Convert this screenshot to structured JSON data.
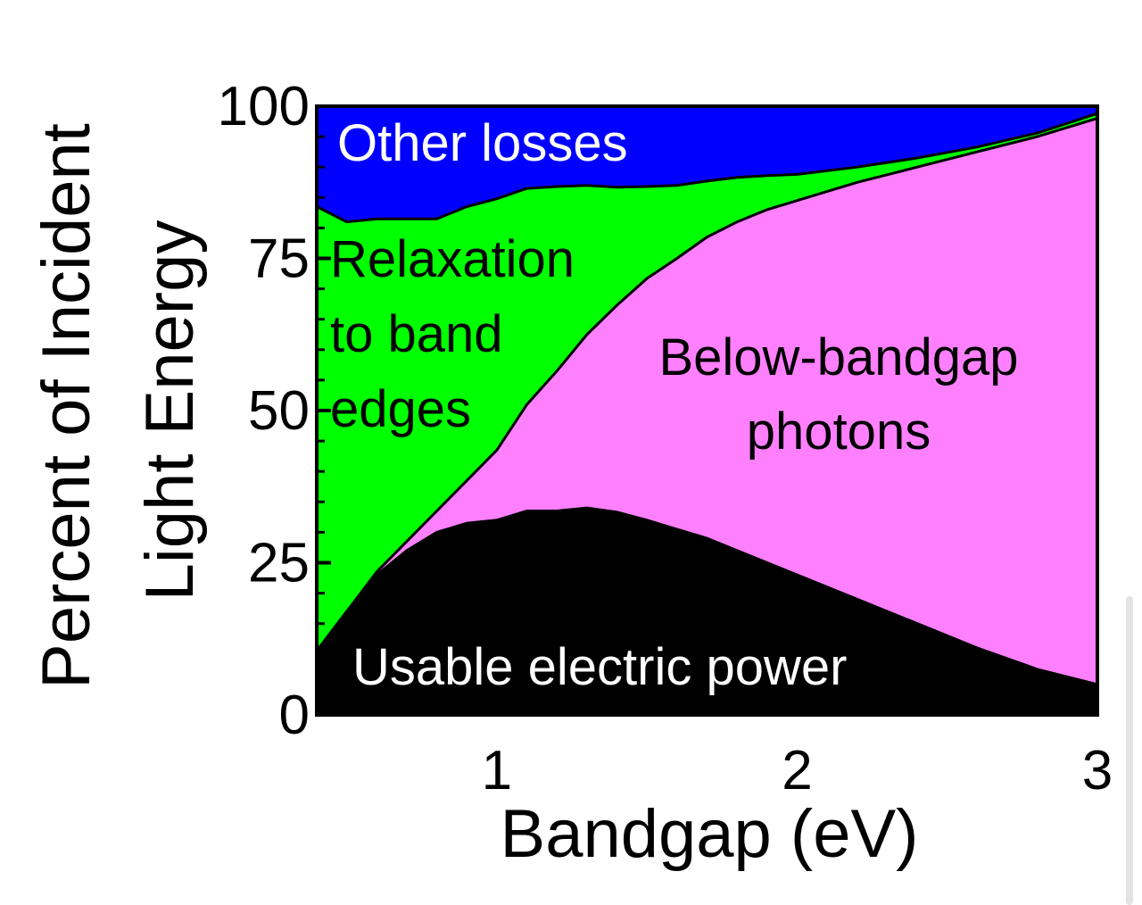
{
  "chart_data": {
    "type": "area",
    "title": "",
    "xlabel": "Bandgap (eV)",
    "ylabel_lines": [
      "Percent of Incident",
      "Light Energy"
    ],
    "xlim": [
      0.4,
      3.0
    ],
    "ylim": [
      0,
      100
    ],
    "x_ticks": [
      1,
      2,
      3
    ],
    "x_tick_labels": [
      "1",
      "2",
      "3"
    ],
    "y_ticks": [
      0,
      25,
      50,
      75,
      100
    ],
    "y_tick_labels": [
      "0",
      "25",
      "50",
      "75",
      "100"
    ],
    "stacked": true,
    "x": [
      0.4,
      0.5,
      0.6,
      0.7,
      0.8,
      0.9,
      1.0,
      1.1,
      1.2,
      1.3,
      1.4,
      1.5,
      1.6,
      1.7,
      1.8,
      1.9,
      2.0,
      2.2,
      2.4,
      2.6,
      2.8,
      3.0
    ],
    "series": [
      {
        "name": "Usable electric power",
        "color": "#000000",
        "values": [
          10.5,
          17,
          23,
          27,
          30,
          31.5,
          32,
          33.5,
          33.5,
          34,
          33.3,
          32,
          30.5,
          29,
          27,
          25,
          23,
          19,
          15,
          11,
          7.5,
          5
        ]
      },
      {
        "name": "Below-bandgap photons",
        "color": "#ff80ff",
        "values": [
          0,
          0,
          0.5,
          1.5,
          3.5,
          7,
          11.5,
          17.5,
          23,
          28.5,
          34,
          39.7,
          44.5,
          49.5,
          54,
          58,
          61.5,
          68.5,
          75,
          81.5,
          87.5,
          93
        ]
      },
      {
        "name": "Relaxation to band edges",
        "color": "#00ff00",
        "values": [
          73,
          64,
          58,
          53,
          48,
          45,
          41.3,
          35.5,
          30.3,
          24.5,
          19.4,
          15.1,
          12,
          9.2,
          7.3,
          5.6,
          4.3,
          2.5,
          1.5,
          0.8,
          0.6,
          0.8
        ]
      },
      {
        "name": "Other losses",
        "color": "#0000ff",
        "values": [
          16.5,
          19,
          18.5,
          18.5,
          18.5,
          16.5,
          15.2,
          13.5,
          13.2,
          13,
          13.3,
          13.2,
          13,
          12.3,
          11.7,
          11.4,
          11.2,
          10,
          8.5,
          6.7,
          4.4,
          1.2
        ]
      }
    ],
    "annotations": [
      {
        "text": "Other losses",
        "color": "#ffffff"
      },
      {
        "text": "Relaxation",
        "color": "#000000"
      },
      {
        "text": "to band",
        "color": "#000000"
      },
      {
        "text": "edges",
        "color": "#000000"
      },
      {
        "text": "Below-bandgap",
        "color": "#000000"
      },
      {
        "text": "photons",
        "color": "#000000"
      },
      {
        "text": "Usable electric power",
        "color": "#ffffff"
      }
    ],
    "grid": false,
    "legend": "none"
  }
}
